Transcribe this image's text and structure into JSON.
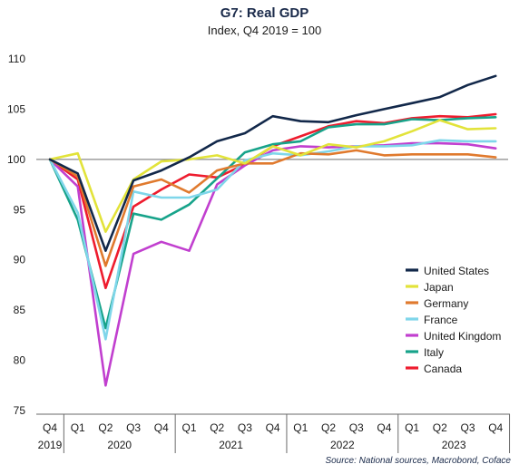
{
  "chart_data": {
    "type": "line",
    "title": "G7: Real GDP",
    "subtitle": "Index, Q4 2019 = 100",
    "source": "Source: National sources, Macrobond, Coface",
    "ylim": [
      75,
      110
    ],
    "yticks": [
      "75",
      "80",
      "85",
      "90",
      "95",
      "100",
      "105",
      "110"
    ],
    "reference_line": 100,
    "legend_position": "lower-right",
    "x_quarters": [
      "Q4",
      "Q1",
      "Q2",
      "Q3",
      "Q4",
      "Q1",
      "Q2",
      "Q3",
      "Q4",
      "Q1",
      "Q2",
      "Q3",
      "Q4",
      "Q1",
      "Q2",
      "Q3",
      "Q4"
    ],
    "x_years": [
      {
        "label": "2019",
        "center_index": 0
      },
      {
        "label": "2020",
        "center_index": 2.5
      },
      {
        "label": "2021",
        "center_index": 6.5
      },
      {
        "label": "2022",
        "center_index": 10.5
      },
      {
        "label": "2023",
        "center_index": 14.5
      }
    ],
    "year_separators": [
      0.5,
      4.5,
      8.5,
      12.5,
      16.5
    ],
    "series": [
      {
        "name": "United States",
        "color": "#12284a",
        "values": [
          100,
          98.6,
          90.9,
          97.9,
          98.9,
          100.2,
          101.8,
          102.6,
          104.3,
          103.8,
          103.7,
          104.4,
          105.0,
          105.6,
          106.2,
          107.4,
          108.3
        ]
      },
      {
        "name": "Japan",
        "color": "#e2e33a",
        "values": [
          100,
          100.6,
          92.8,
          98.0,
          99.8,
          100.0,
          100.4,
          99.6,
          101.3,
          100.4,
          101.5,
          101.2,
          101.8,
          102.8,
          103.9,
          103.0,
          103.1
        ]
      },
      {
        "name": "Germany",
        "color": "#e07a2e",
        "values": [
          100,
          98.3,
          89.4,
          97.3,
          98.0,
          96.7,
          98.9,
          99.6,
          99.6,
          100.6,
          100.5,
          100.9,
          100.4,
          100.5,
          100.5,
          100.5,
          100.2
        ]
      },
      {
        "name": "France",
        "color": "#7fd6ea",
        "values": [
          100,
          94.7,
          82.1,
          96.8,
          96.2,
          96.2,
          97.0,
          99.9,
          100.6,
          100.4,
          100.8,
          101.3,
          101.3,
          101.4,
          101.9,
          101.8,
          101.8
        ]
      },
      {
        "name": "United Kingdom",
        "color": "#c13fcf",
        "values": [
          100,
          97.3,
          77.5,
          90.6,
          91.8,
          90.9,
          97.5,
          99.4,
          100.9,
          101.3,
          101.2,
          101.3,
          101.4,
          101.6,
          101.6,
          101.5,
          101.1
        ]
      },
      {
        "name": "Italy",
        "color": "#17a38a",
        "values": [
          100,
          94.0,
          83.2,
          94.6,
          94.0,
          95.5,
          98.1,
          100.7,
          101.5,
          101.8,
          103.2,
          103.5,
          103.5,
          104.0,
          103.9,
          104.1,
          104.2
        ]
      },
      {
        "name": "Canada",
        "color": "#ee1c2e",
        "values": [
          100,
          98.0,
          87.2,
          95.3,
          97.0,
          98.5,
          98.2,
          99.5,
          101.3,
          102.3,
          103.3,
          103.8,
          103.6,
          104.1,
          104.3,
          104.2,
          104.5
        ]
      }
    ]
  }
}
